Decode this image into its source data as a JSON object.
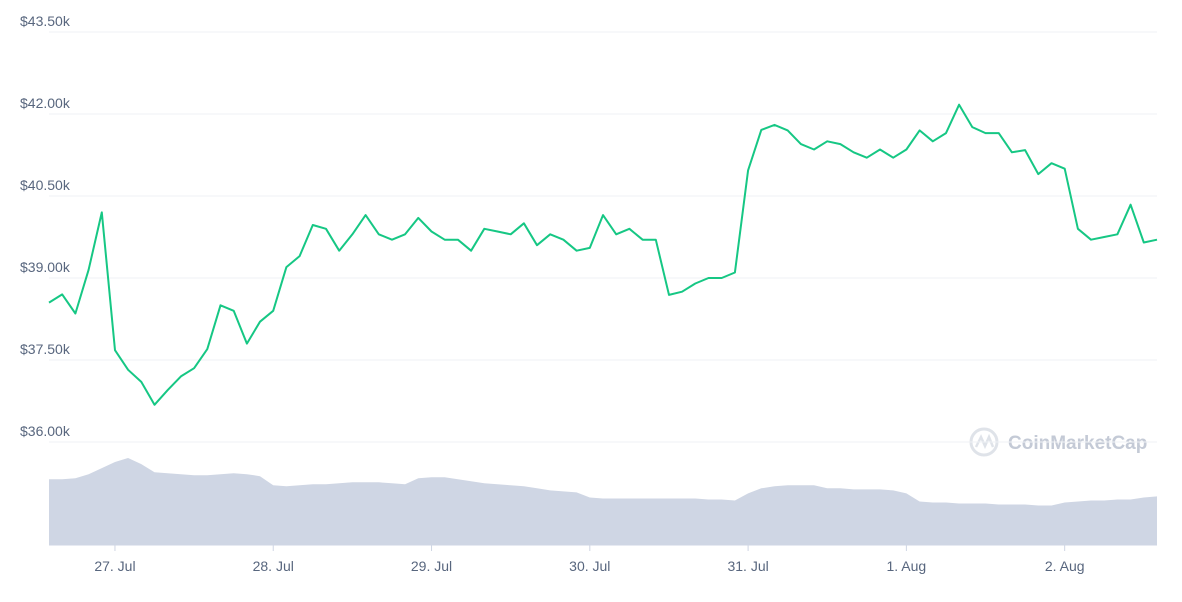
{
  "chart_data": {
    "type": "line",
    "watermark": "CoinMarketCap",
    "categories": [
      null,
      null,
      null,
      null,
      null,
      "27. Jul",
      null,
      null,
      null,
      null,
      null,
      null,
      null,
      null,
      null,
      null,
      null,
      "28. Jul",
      null,
      null,
      null,
      null,
      null,
      null,
      null,
      null,
      null,
      null,
      null,
      "29. Jul",
      null,
      null,
      null,
      null,
      null,
      null,
      null,
      null,
      null,
      null,
      null,
      "30. Jul",
      null,
      null,
      null,
      null,
      null,
      null,
      null,
      null,
      null,
      null,
      null,
      "31. Jul",
      null,
      null,
      null,
      null,
      null,
      null,
      null,
      null,
      null,
      null,
      null,
      "1. Aug",
      null,
      null,
      null,
      null,
      null,
      null,
      null,
      null,
      null,
      null,
      null,
      "2. Aug",
      null,
      null,
      null,
      null,
      null,
      null,
      null
    ],
    "values": [
      38550,
      38700,
      38350,
      39150,
      40200,
      37680,
      37320,
      37100,
      36680,
      36950,
      37200,
      37350,
      37700,
      38500,
      38400,
      37800,
      38200,
      38400,
      39200,
      39400,
      39970,
      39900,
      39500,
      39800,
      40150,
      39800,
      39700,
      39800,
      40100,
      39850,
      39700,
      39700,
      39500,
      39900,
      39850,
      39800,
      40000,
      39600,
      39800,
      39700,
      39500,
      39550,
      40150,
      39800,
      39900,
      39700,
      39700,
      38690,
      38750,
      38900,
      39000,
      39000,
      39100,
      40970,
      41710,
      41800,
      41700,
      41450,
      41350,
      41500,
      41450,
      41300,
      41200,
      41350,
      41200,
      41350,
      41700,
      41500,
      41650,
      42170,
      41760,
      41650,
      41650,
      41300,
      41340,
      40900,
      41100,
      41000,
      39900,
      39700,
      39750,
      39800,
      40340,
      39650,
      39700
    ],
    "color": "#16c784",
    "volume": [
      65,
      65,
      66,
      70,
      76,
      82,
      86,
      80,
      72,
      71,
      70,
      69,
      69,
      70,
      71,
      70,
      68,
      59,
      58,
      59,
      60,
      60,
      61,
      62,
      62,
      62,
      61,
      60,
      66,
      67,
      67,
      65,
      63,
      61,
      60,
      59,
      58,
      56,
      54,
      53,
      52,
      47,
      46,
      46,
      46,
      46,
      46,
      46,
      46,
      46,
      45,
      45,
      44,
      51,
      56,
      58,
      59,
      59,
      59,
      56,
      56,
      55,
      55,
      55,
      54,
      51,
      43,
      42,
      42,
      41,
      41,
      41,
      40,
      40,
      40,
      39,
      39,
      42,
      43,
      44,
      44,
      45,
      45,
      47,
      48
    ],
    "volume_color": "#cfd6e4",
    "ylim": [
      36000,
      43500
    ],
    "yticks": [
      {
        "value": 36000,
        "label": "$36.00k"
      },
      {
        "value": 37500,
        "label": "$37.50k"
      },
      {
        "value": 39000,
        "label": "$39.00k"
      },
      {
        "value": 40500,
        "label": "$40.50k"
      },
      {
        "value": 42000,
        "label": "$42.00k"
      },
      {
        "value": 43500,
        "label": "$43.50k"
      }
    ],
    "grid": true
  }
}
